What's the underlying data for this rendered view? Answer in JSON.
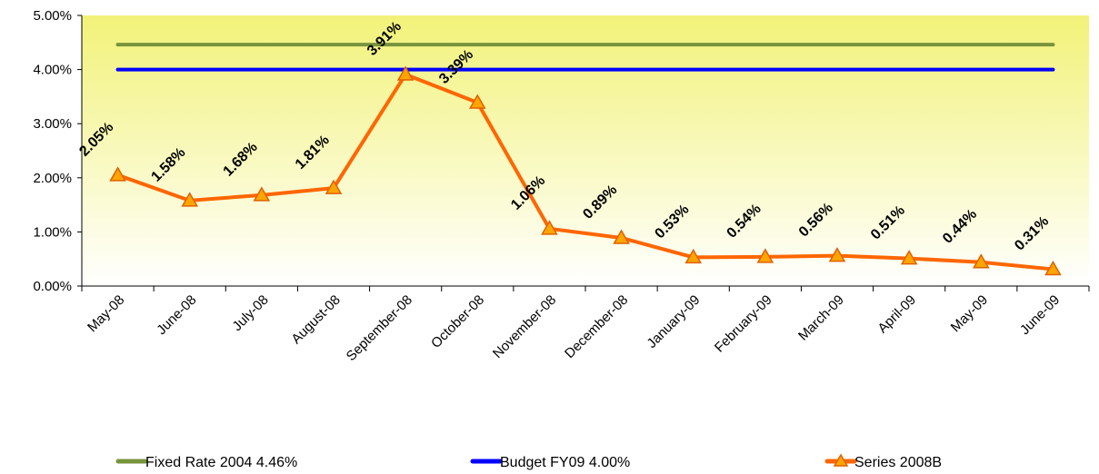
{
  "chart_data": {
    "type": "line",
    "categories": [
      "May-08",
      "June-08",
      "July-08",
      "August-08",
      "September-08",
      "October-08",
      "November-08",
      "December-08",
      "January-09",
      "February-09",
      "March-09",
      "April-09",
      "May-09",
      "June-09"
    ],
    "ylim": [
      0,
      5
    ],
    "yticks": [
      "0.00%",
      "1.00%",
      "2.00%",
      "3.00%",
      "4.00%",
      "5.00%"
    ],
    "series": [
      {
        "name": "Fixed Rate 2004 4.46%",
        "color": "#77933C",
        "values": [
          4.46,
          4.46,
          4.46,
          4.46,
          4.46,
          4.46,
          4.46,
          4.46,
          4.46,
          4.46,
          4.46,
          4.46,
          4.46,
          4.46
        ]
      },
      {
        "name": "Budget FY09 4.00%",
        "color": "#0000FF",
        "values": [
          4.0,
          4.0,
          4.0,
          4.0,
          4.0,
          4.0,
          4.0,
          4.0,
          4.0,
          4.0,
          4.0,
          4.0,
          4.0,
          4.0
        ]
      },
      {
        "name": "Series 2008B",
        "color": "#FF6600",
        "marker": "triangle",
        "values": [
          2.05,
          1.58,
          1.68,
          1.81,
          3.91,
          3.39,
          1.06,
          0.89,
          0.53,
          0.54,
          0.56,
          0.51,
          0.44,
          0.31
        ],
        "labels": [
          "2.05%",
          "1.58%",
          "1.68%",
          "1.81%",
          "3.91%",
          "3.39%",
          "1.06%",
          "0.89%",
          "0.53%",
          "0.54%",
          "0.56%",
          "0.51%",
          "0.44%",
          "0.31%"
        ]
      }
    ],
    "plot_background": "#FFFFC0",
    "legend_position": "bottom",
    "grid": false
  }
}
